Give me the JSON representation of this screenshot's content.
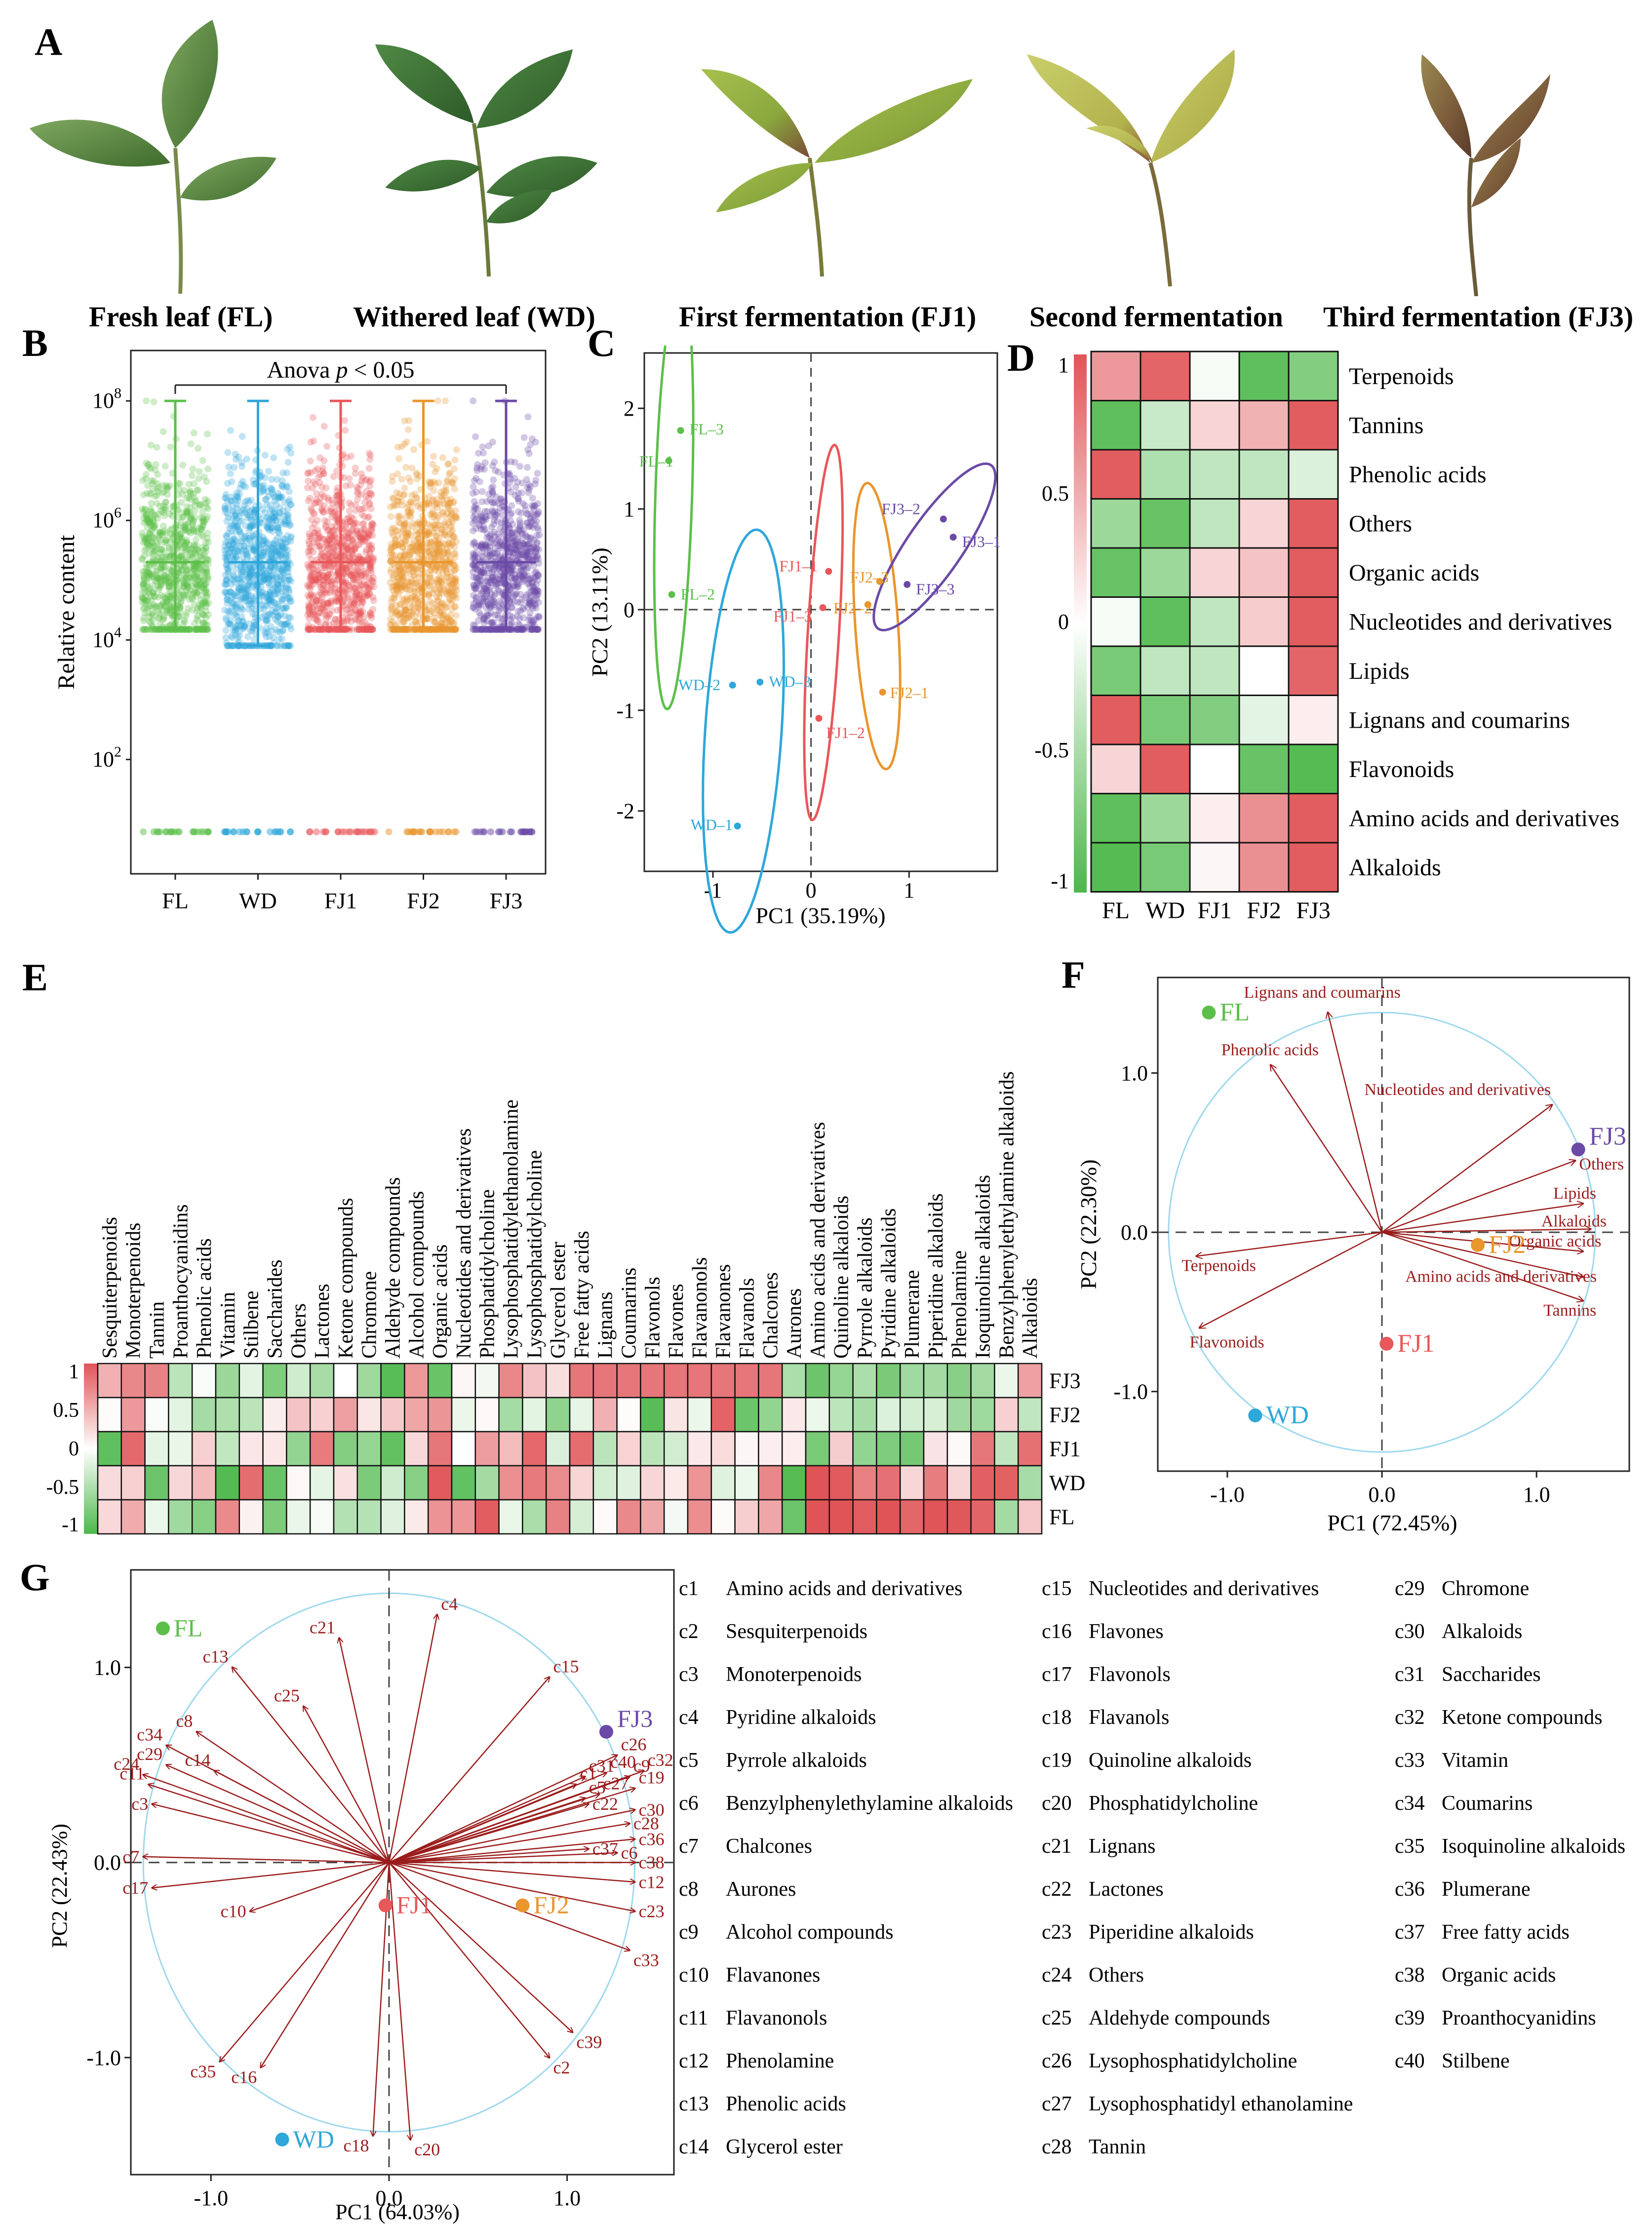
{
  "panel_labels": [
    "A",
    "B",
    "C",
    "D",
    "E",
    "F",
    "G"
  ],
  "panelA": {
    "captions": [
      "Fresh leaf (FL)",
      "Withered leaf (WD)",
      "First fermentation (FJ1)",
      "Second fermentation",
      "Third fermentation (FJ3)"
    ]
  },
  "colors": {
    "FL": "#5cbf4a",
    "WD": "#2ea7d9",
    "FJ1": "#e8575a",
    "FJ2": "#e9962d",
    "FJ3": "#6a4aa6",
    "arrow": "#9b1c1c",
    "heat_red": "#e05457",
    "heat_green": "#4cb84a"
  },
  "chart_data": [
    {
      "id": "B",
      "type": "scatter",
      "title": "Anova p < 0.05",
      "anova_prefix": "Anova",
      "anova_p": "p",
      "anova_suffix": "< 0.05",
      "ylabel": "Relative content",
      "yscale": "log10",
      "ytick_base": "10",
      "ytick_exps": [
        "8",
        "6",
        "4",
        "2"
      ],
      "categories": [
        "FL",
        "WD",
        "FJ1",
        "FJ2",
        "FJ3"
      ],
      "whisker_range": [
        [
          15000.0,
          100000000.0
        ],
        [
          8000.0,
          100000000.0
        ],
        [
          15000.0,
          100000000.0
        ],
        [
          15000.0,
          100000000.0
        ],
        [
          15000.0,
          100000000.0
        ]
      ],
      "median": [
        200000.0,
        200000.0,
        200000.0,
        200000.0,
        200000.0
      ]
    },
    {
      "id": "C",
      "type": "scatter",
      "xlabel": "PC1 (35.19%)",
      "ylabel": "PC2 (13.11%)",
      "xticks": [
        "-1",
        "0",
        "1"
      ],
      "yticks": [
        "2",
        "1",
        "0",
        "-1",
        "-2"
      ],
      "xlim": [
        -1.7,
        1.9
      ],
      "ylim": [
        -2.6,
        2.55
      ],
      "points": [
        {
          "label": "FL-1",
          "x": -1.45,
          "y": 1.48
        },
        {
          "label": "FL-2",
          "x": -1.42,
          "y": 0.15
        },
        {
          "label": "FL-3",
          "x": -1.33,
          "y": 1.78
        },
        {
          "label": "WD-1",
          "x": -0.75,
          "y": -2.15
        },
        {
          "label": "WD-2",
          "x": -0.8,
          "y": -0.75
        },
        {
          "label": "WD-3",
          "x": -0.52,
          "y": -0.72
        },
        {
          "label": "FJ1-1",
          "x": 0.18,
          "y": 0.38
        },
        {
          "label": "FJ1-2",
          "x": 0.08,
          "y": -1.08
        },
        {
          "label": "FJ1-3",
          "x": 0.12,
          "y": 0.02
        },
        {
          "label": "FJ2-1",
          "x": 0.73,
          "y": -0.82
        },
        {
          "label": "FJ2-2",
          "x": 0.58,
          "y": 0.05
        },
        {
          "label": "FJ2-3",
          "x": 0.7,
          "y": 0.28
        },
        {
          "label": "FJ3-1",
          "x": 1.45,
          "y": 0.72
        },
        {
          "label": "FJ3-2",
          "x": 1.35,
          "y": 0.9
        },
        {
          "label": "FJ3-3",
          "x": 0.98,
          "y": 0.25
        }
      ]
    },
    {
      "id": "D",
      "type": "heatmap",
      "columns": [
        "FL",
        "WD",
        "FJ1",
        "FJ2",
        "FJ3"
      ],
      "rows": [
        "Terpenoids",
        "Tannins",
        "Phenolic acids",
        "Others",
        "Organic acids",
        "Nucleotides and derivatives",
        "Lipids",
        "Lignans and coumarins",
        "Flavonoids",
        "Amino acids and derivatives",
        "Alkaloids"
      ],
      "values": [
        [
          0.6,
          0.9,
          -0.05,
          -0.9,
          -0.7
        ],
        [
          -0.9,
          -0.3,
          0.25,
          0.45,
          0.95
        ],
        [
          0.95,
          -0.45,
          -0.35,
          -0.35,
          -0.2
        ],
        [
          -0.55,
          -0.85,
          -0.35,
          0.25,
          0.95
        ],
        [
          -0.85,
          -0.55,
          0.25,
          0.35,
          0.95
        ],
        [
          -0.05,
          -0.9,
          -0.35,
          0.3,
          0.95
        ],
        [
          -0.75,
          -0.35,
          -0.35,
          0.0,
          0.9
        ],
        [
          0.95,
          -0.75,
          -0.7,
          -0.15,
          0.1
        ],
        [
          0.25,
          0.95,
          0.0,
          -0.85,
          -0.95
        ],
        [
          -0.9,
          -0.55,
          0.1,
          0.65,
          0.95
        ],
        [
          -0.95,
          -0.75,
          0.05,
          0.65,
          0.95
        ]
      ],
      "colorbar_ticks": [
        "1",
        "0.5",
        "0",
        "-0.5",
        "-1"
      ]
    },
    {
      "id": "E",
      "type": "heatmap",
      "rows": [
        "FJ3",
        "FJ2",
        "FJ1",
        "WD",
        "FL"
      ],
      "columns": [
        "Sesquiterpenoids",
        "Monoterpenoids",
        "Tannin",
        "Proanthocyanidins",
        "Phenolic acids",
        "Vitamin",
        "Stilbene",
        "Saccharides",
        "Others",
        "Lactones",
        "Ketone compounds",
        "Chromone",
        "Aldehyde compounds",
        "Alcohol compounds",
        "Organic acids",
        "Nucleotides and derivatives",
        "Phosphatidylcholine",
        "Lysophosphatidylethanolamine",
        "Lysophosphatidylcholine",
        "Glycerol ester",
        "Free fatty acids",
        "Lignans",
        "Coumarins",
        "Flavonols",
        "Flavones",
        "Flavanonols",
        "Flavanones",
        "Flavanols",
        "Chalcones",
        "Aurones",
        "Amino acids and derivatives",
        "Quinoline alkaloids",
        "Pyrrole alkaloids",
        "Pyridine alkaloids",
        "Plumerane",
        "Piperidine alkaloids",
        "Phenolamine",
        "Isoquinoline alkaloids",
        "Benzylphenylethylamine alkaloids",
        "Alkaloids"
      ],
      "colorbar_ticks": [
        "1",
        "0.5",
        "0",
        "-0.5",
        "-1"
      ]
    },
    {
      "id": "F",
      "type": "scatter",
      "xlabel": "PC1 (72.45%)",
      "ylabel": "PC2 (22.30%)",
      "xticks": [
        "-1.0",
        "0.0",
        "1.0"
      ],
      "yticks": [
        "1.0",
        "0.0",
        "-1.0"
      ],
      "xlim": [
        -1.45,
        1.6
      ],
      "ylim": [
        -1.5,
        1.6
      ],
      "points": [
        {
          "label": "FL",
          "x": -1.12,
          "y": 1.38
        },
        {
          "label": "FJ3",
          "x": 1.27,
          "y": 0.52
        },
        {
          "label": "FJ2",
          "x": 0.62,
          "y": -0.08
        },
        {
          "label": "FJ1",
          "x": 0.03,
          "y": -0.7
        },
        {
          "label": "WD",
          "x": -0.82,
          "y": -1.15
        }
      ],
      "vectors": [
        {
          "label": "Lignans and coumarins",
          "x": -0.35,
          "y": 1.38
        },
        {
          "label": "Phenolic acids",
          "x": -0.72,
          "y": 1.05
        },
        {
          "label": "Nucleotides and derivatives",
          "x": 1.1,
          "y": 0.8
        },
        {
          "label": "Others",
          "x": 1.25,
          "y": 0.45
        },
        {
          "label": "Lipids",
          "x": 1.3,
          "y": 0.18
        },
        {
          "label": "Alkaloids",
          "x": 1.35,
          "y": 0.02
        },
        {
          "label": "Organic acids",
          "x": 1.3,
          "y": -0.12
        },
        {
          "label": "Amino acids and derivatives",
          "x": 1.3,
          "y": -0.28
        },
        {
          "label": "Tannins",
          "x": 1.3,
          "y": -0.43
        },
        {
          "label": "Terpenoids",
          "x": -1.2,
          "y": -0.15
        },
        {
          "label": "Flavonoids",
          "x": -1.18,
          "y": -0.6
        }
      ]
    },
    {
      "id": "G",
      "type": "scatter",
      "xlabel": "PC1 (64.03%)",
      "ylabel": "PC2 (22.43%)",
      "xticks": [
        "-1.0",
        "0.0",
        "1.0"
      ],
      "yticks": [
        "1.0",
        "0.0",
        "-1.0"
      ],
      "xlim": [
        -1.45,
        1.6
      ],
      "ylim": [
        -1.6,
        1.5
      ],
      "points": [
        {
          "label": "FL",
          "x": -1.27,
          "y": 1.2
        },
        {
          "label": "FJ3",
          "x": 1.22,
          "y": 0.67
        },
        {
          "label": "FJ2",
          "x": 0.75,
          "y": -0.22
        },
        {
          "label": "FJ1",
          "x": -0.02,
          "y": -0.22
        },
        {
          "label": "WD",
          "x": -0.6,
          "y": -1.42
        }
      ],
      "vectors": [
        {
          "label": "c4",
          "x": 0.27,
          "y": 1.27
        },
        {
          "label": "c21",
          "x": -0.28,
          "y": 1.15
        },
        {
          "label": "c13",
          "x": -0.88,
          "y": 1.0
        },
        {
          "label": "c25",
          "x": -0.48,
          "y": 0.8
        },
        {
          "label": "c15",
          "x": 0.9,
          "y": 0.95
        },
        {
          "label": "c8",
          "x": -1.08,
          "y": 0.67
        },
        {
          "label": "c34",
          "x": -1.25,
          "y": 0.6
        },
        {
          "label": "c14",
          "x": -0.98,
          "y": 0.47
        },
        {
          "label": "c29",
          "x": -1.25,
          "y": 0.5
        },
        {
          "label": "c24",
          "x": -1.38,
          "y": 0.45
        },
        {
          "label": "c11",
          "x": -1.35,
          "y": 0.4
        },
        {
          "label": "c3",
          "x": -1.33,
          "y": 0.3
        },
        {
          "label": "c7",
          "x": -1.38,
          "y": 0.03
        },
        {
          "label": "c17",
          "x": -1.33,
          "y": -0.13
        },
        {
          "label": "c10",
          "x": -0.78,
          "y": -0.25
        },
        {
          "label": "c35",
          "x": -0.95,
          "y": -1.02
        },
        {
          "label": "c16",
          "x": -0.72,
          "y": -1.05
        },
        {
          "label": "c18",
          "x": -0.09,
          "y": -1.4
        },
        {
          "label": "c20",
          "x": 0.12,
          "y": -1.42
        },
        {
          "label": "c2",
          "x": 0.9,
          "y": -1.0
        },
        {
          "label": "c39",
          "x": 1.03,
          "y": -0.87
        },
        {
          "label": "c33",
          "x": 1.35,
          "y": -0.45
        },
        {
          "label": "c23",
          "x": 1.38,
          "y": -0.25
        },
        {
          "label": "c12",
          "x": 1.38,
          "y": -0.1
        },
        {
          "label": "c38",
          "x": 1.38,
          "y": 0.0
        },
        {
          "label": "c37",
          "x": 1.12,
          "y": 0.07
        },
        {
          "label": "c6",
          "x": 1.28,
          "y": 0.05
        },
        {
          "label": "c36",
          "x": 1.38,
          "y": 0.12
        },
        {
          "label": "c28",
          "x": 1.35,
          "y": 0.2
        },
        {
          "label": "c30",
          "x": 1.38,
          "y": 0.27
        },
        {
          "label": "c22",
          "x": 1.12,
          "y": 0.3
        },
        {
          "label": "c5",
          "x": 1.1,
          "y": 0.33
        },
        {
          "label": "c27",
          "x": 1.18,
          "y": 0.35
        },
        {
          "label": "c31",
          "x": 1.1,
          "y": 0.44
        },
        {
          "label": "c1",
          "x": 1.05,
          "y": 0.4
        },
        {
          "label": "c19",
          "x": 1.38,
          "y": 0.38
        },
        {
          "label": "c9",
          "x": 1.35,
          "y": 0.44
        },
        {
          "label": "c40",
          "x": 1.22,
          "y": 0.46
        },
        {
          "label": "c32",
          "x": 1.43,
          "y": 0.47
        },
        {
          "label": "c26",
          "x": 1.28,
          "y": 0.55
        }
      ]
    }
  ],
  "legendG": [
    "c1 Amino acids and derivatives",
    "c2 Sesquiterpenoids",
    "c3 Monoterpenoids",
    "c4 Pyridine alkaloids",
    "c5 Pyrrole alkaloids",
    "c6 Benzylphenylethylamine alkaloids",
    "c7 Chalcones",
    "c8 Aurones",
    "c9 Alcohol compounds",
    "c10 Flavanones",
    "c11 Flavanonols",
    "c12 Phenolamine",
    "c13 Phenolic acids",
    "c14 Glycerol ester",
    "c15 Nucleotides and derivatives",
    "c16 Flavones",
    "c17 Flavonols",
    "c18 Flavanols",
    "c19 Quinoline alkaloids",
    "c20 Phosphatidylcholine",
    "c21 Lignans",
    "c22 Lactones",
    "c23 Piperidine alkaloids",
    "c24 Others",
    "c25 Aldehyde compounds",
    "c26 Lysophosphatidylcholine",
    "c27 Lysophosphatidyl ethanolamine",
    "c28 Tannin",
    "c29 Chromone",
    "c30 Alkaloids",
    "c31 Saccharides",
    "c32 Ketone compounds",
    "c33 Vitamin",
    "c34 Coumarins",
    "c35 Isoquinoline alkaloids",
    "c36 Plumerane",
    "c37 Free fatty acids",
    "c38 Organic acids",
    "c39 Proanthocyanidins",
    "c40 Stilbene"
  ]
}
